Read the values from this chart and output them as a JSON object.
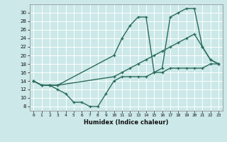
{
  "xlabel": "Humidex (Indice chaleur)",
  "bg_color": "#cce8e8",
  "line_color": "#2a6b5a",
  "grid_color": "#b0d8d0",
  "xlim": [
    -0.5,
    23.5
  ],
  "ylim": [
    7,
    32
  ],
  "xticks": [
    0,
    1,
    2,
    3,
    4,
    5,
    6,
    7,
    8,
    9,
    10,
    11,
    12,
    13,
    14,
    15,
    16,
    17,
    18,
    19,
    20,
    21,
    22,
    23
  ],
  "yticks": [
    8,
    10,
    12,
    14,
    16,
    18,
    20,
    22,
    24,
    26,
    28,
    30
  ],
  "line1_x": [
    0,
    1,
    2,
    3,
    4,
    5,
    6,
    7,
    8,
    9,
    10,
    11,
    12,
    13,
    14,
    15,
    16,
    17,
    18,
    19,
    20,
    21,
    22,
    23
  ],
  "line1_y": [
    14,
    13,
    13,
    12,
    11,
    9,
    9,
    8,
    8,
    11,
    14,
    15,
    15,
    15,
    15,
    16,
    16,
    17,
    17,
    17,
    17,
    17,
    18,
    18
  ],
  "line2_x": [
    0,
    1,
    2,
    3,
    10,
    11,
    12,
    13,
    14,
    15,
    16,
    17,
    18,
    19,
    20,
    21,
    22,
    23
  ],
  "line2_y": [
    14,
    13,
    13,
    13,
    15,
    16,
    17,
    18,
    19,
    20,
    21,
    22,
    23,
    24,
    25,
    22,
    19,
    18
  ],
  "line3_x": [
    0,
    1,
    2,
    3,
    10,
    11,
    12,
    13,
    14,
    15,
    16,
    17,
    18,
    19,
    20,
    21,
    22,
    23
  ],
  "line3_y": [
    14,
    13,
    13,
    13,
    20,
    24,
    27,
    29,
    29,
    16,
    17,
    29,
    30,
    31,
    31,
    22,
    19,
    18
  ]
}
